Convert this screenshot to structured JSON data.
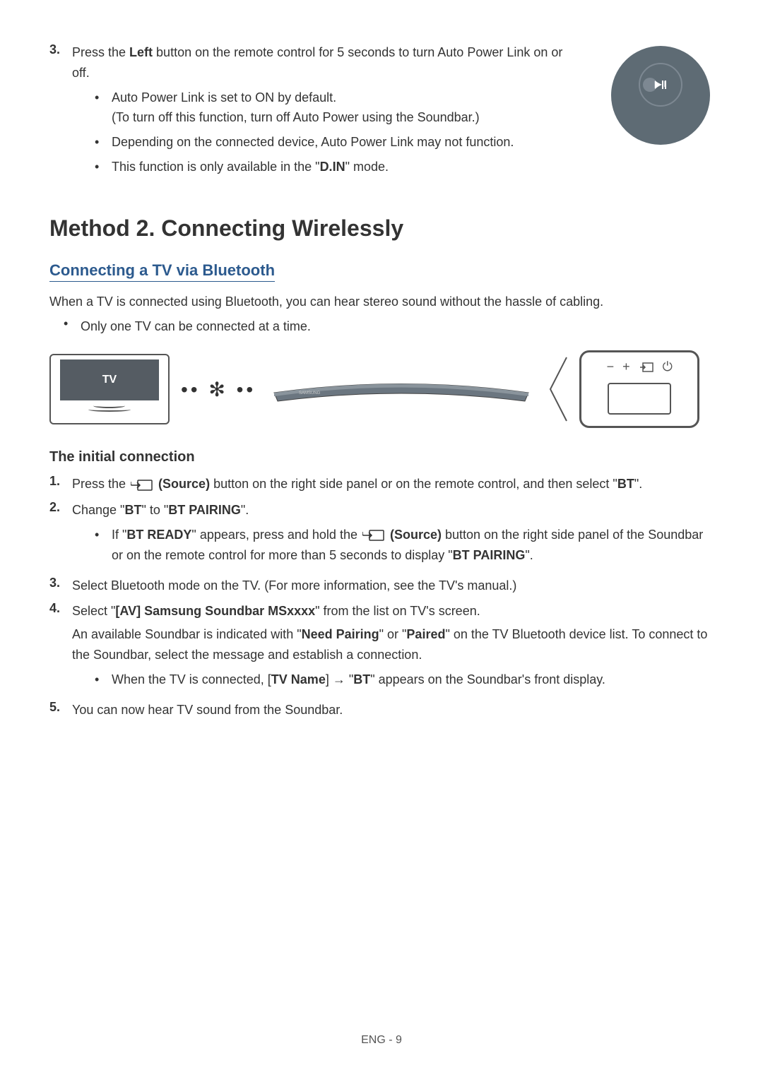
{
  "topStep": {
    "num": "3.",
    "textParts": [
      "Press the ",
      "Left",
      " button on the remote control for 5 seconds to turn Auto Power Link on or off."
    ],
    "bullets": [
      {
        "line1": "Auto Power Link is set to ON by default.",
        "line2": "(To turn off this function, turn off Auto Power using the Soundbar.)"
      },
      {
        "line1": "Depending on the connected device, Auto Power Link may not function."
      },
      {
        "parts": [
          "This function is only available in the \"",
          "D.IN",
          "\" mode."
        ]
      }
    ]
  },
  "methodTitle": "Method 2. Connecting Wirelessly",
  "subsectionTitle": "Connecting a TV via Bluetooth",
  "intro": "When a TV is connected using Bluetooth, you can hear stereo sound without the hassle of cabling.",
  "introBullet": "Only one TV can be connected at a time.",
  "diagram": {
    "tvLabel": "TV",
    "btDots": "•• ✻ ••",
    "soundbarLabel": "SAMSUNG",
    "controls": {
      "minus": "−",
      "plus": "+",
      "sourceIcon": "source",
      "power": "⏻"
    }
  },
  "subHeading": "The initial connection",
  "steps": [
    {
      "num": "1.",
      "parts": [
        "Press the ",
        "__SOURCE_ICON__",
        " (Source)",
        " button on the right side panel or on the remote control, and then select \"",
        "BT",
        "\"."
      ]
    },
    {
      "num": "2.",
      "parts": [
        "Change \"",
        "BT",
        "\" to \"",
        "BT PAIRING",
        "\"."
      ],
      "subBullet": {
        "parts": [
          "If \"",
          "BT READY",
          "\" appears, press and hold the ",
          "__SOURCE_ICON__",
          " (Source)",
          " button on the right side panel of the Soundbar or on the remote control for more than 5 seconds to display \"",
          "BT PAIRING",
          "\"."
        ]
      }
    },
    {
      "num": "3.",
      "parts": [
        "Select Bluetooth mode on the TV. (For more information, see the TV's manual.)"
      ]
    },
    {
      "num": "4.",
      "parts": [
        "Select \"",
        "[AV] Samsung Soundbar MSxxxx",
        "\" from the list on TV's screen."
      ],
      "extraLines": [
        [
          "An available Soundbar is indicated with \"",
          "Need Pairing",
          "\" or \"",
          "Paired",
          "\" on the TV Bluetooth device list. To connect to the Soundbar, select the message and establish a connection."
        ]
      ],
      "subBullet": {
        "parts": [
          "When the TV is connected, [",
          "TV Name",
          "] → \"",
          "BT",
          "\" appears on the Soundbar's front display."
        ]
      }
    },
    {
      "num": "5.",
      "parts": [
        "You can now hear TV sound from the Soundbar."
      ]
    }
  ],
  "footer": "ENG - 9",
  "colors": {
    "headingBlue": "#2c5a8e",
    "bodyText": "#333333",
    "iconGray": "#5e6b74",
    "iconLight": "#7d8892"
  }
}
